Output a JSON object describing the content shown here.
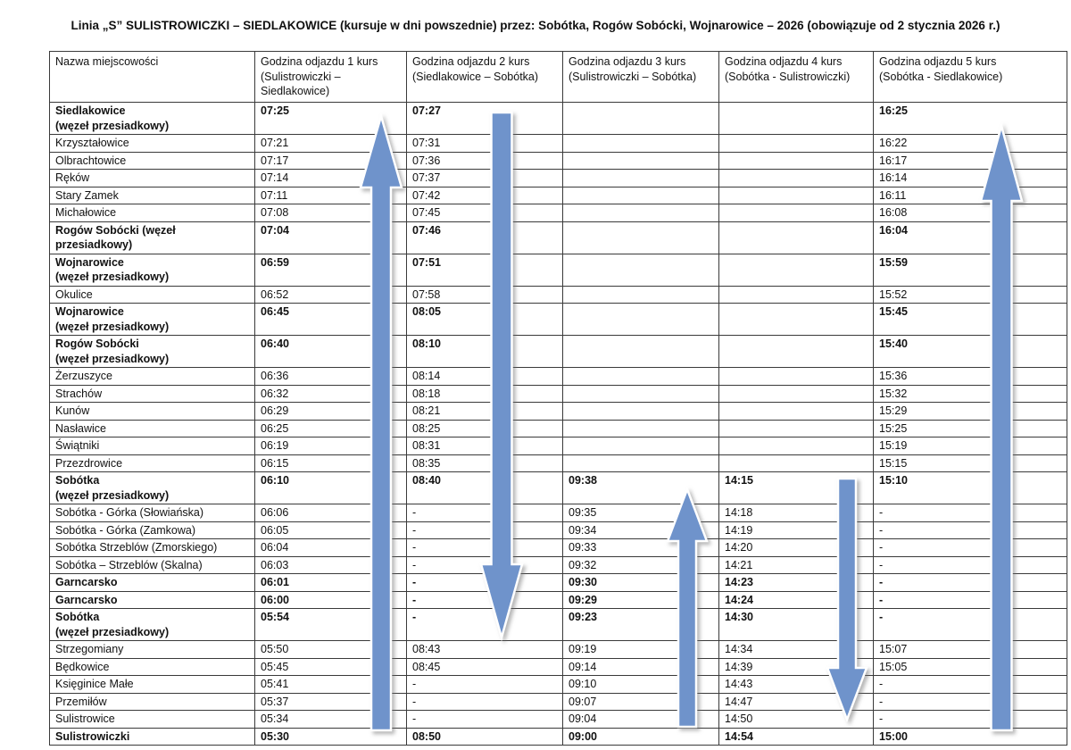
{
  "title": "Linia „S” SULISTROWICZKI – SIEDLAKOWICE (kursuje w dni powszednie) przez: Sobótka, Rogów Sobócki, Wojnarowice – 2026 (obowiązuje od 2 stycznia 2026 r.)",
  "table": {
    "columns": [
      {
        "line1": "Nazwa miejscowości",
        "line2": ""
      },
      {
        "line1": "Godzina odjazdu 1 kurs",
        "line2": "(Sulistrowiczki – Siedlakowice)"
      },
      {
        "line1": "Godzina odjazdu 2 kurs",
        "line2": "(Siedlakowice – Sobótka)"
      },
      {
        "line1": "Godzina odjazdu 3 kurs",
        "line2": "(Sulistrowiczki – Sobótka)"
      },
      {
        "line1": "Godzina odjazdu 4 kurs",
        "line2": "(Sobótka - Sulistrowiczki)"
      },
      {
        "line1": "Godzina odjazdu 5 kurs",
        "line2": "(Sobótka - Siedlakowice)"
      }
    ],
    "rows": [
      {
        "name": "Siedlakowice",
        "sub": "(węzeł przesiadkowy)",
        "bold": true,
        "times": [
          "07:25",
          "07:27",
          "",
          "",
          "16:25"
        ]
      },
      {
        "name": "Krzyształowice",
        "sub": "",
        "bold": false,
        "times": [
          "07:21",
          "07:31",
          "",
          "",
          "16:22"
        ]
      },
      {
        "name": "Olbrachtowice",
        "sub": "",
        "bold": false,
        "times": [
          "07:17",
          "07:36",
          "",
          "",
          "16:17"
        ]
      },
      {
        "name": "Ręków",
        "sub": "",
        "bold": false,
        "times": [
          "07:14",
          "07:37",
          "",
          "",
          "16:14"
        ]
      },
      {
        "name": "Stary Zamek",
        "sub": "",
        "bold": false,
        "times": [
          "07:11",
          "07:42",
          "",
          "",
          "16:11"
        ]
      },
      {
        "name": "Michałowice",
        "sub": "",
        "bold": false,
        "times": [
          "07:08",
          "07:45",
          "",
          "",
          "16:08"
        ]
      },
      {
        "name": "Rogów Sobócki (węzeł",
        "sub": "przesiadkowy)",
        "bold": true,
        "times": [
          "07:04",
          "07:46",
          "",
          "",
          "16:04"
        ]
      },
      {
        "name": "Wojnarowice",
        "sub": "(węzeł przesiadkowy)",
        "bold": true,
        "times": [
          "06:59",
          "07:51",
          "",
          "",
          "15:59"
        ]
      },
      {
        "name": "Okulice",
        "sub": "",
        "bold": false,
        "times": [
          "06:52",
          "07:58",
          "",
          "",
          "15:52"
        ]
      },
      {
        "name": "Wojnarowice",
        "sub": "(węzeł przesiadkowy)",
        "bold": true,
        "times": [
          "06:45",
          "08:05",
          "",
          "",
          "15:45"
        ]
      },
      {
        "name": "Rogów Sobócki",
        "sub": "(węzeł przesiadkowy)",
        "bold": true,
        "times": [
          "06:40",
          "08:10",
          "",
          "",
          "15:40"
        ]
      },
      {
        "name": "Żerzuszyce",
        "sub": "",
        "bold": false,
        "times": [
          "06:36",
          "08:14",
          "",
          "",
          "15:36"
        ]
      },
      {
        "name": "Strachów",
        "sub": "",
        "bold": false,
        "times": [
          "06:32",
          "08:18",
          "",
          "",
          "15:32"
        ]
      },
      {
        "name": "Kunów",
        "sub": "",
        "bold": false,
        "times": [
          "06:29",
          "08:21",
          "",
          "",
          "15:29"
        ]
      },
      {
        "name": "Nasławice",
        "sub": "",
        "bold": false,
        "times": [
          "06:25",
          "08:25",
          "",
          "",
          "15:25"
        ]
      },
      {
        "name": "Świątniki",
        "sub": "",
        "bold": false,
        "times": [
          "06:19",
          "08:31",
          "",
          "",
          "15:19"
        ]
      },
      {
        "name": "Przezdrowice",
        "sub": "",
        "bold": false,
        "times": [
          "06:15",
          "08:35",
          "",
          "",
          "15:15"
        ]
      },
      {
        "name": "Sobótka",
        "sub": "(węzeł przesiadkowy)",
        "bold": true,
        "times": [
          "06:10",
          "08:40",
          "09:38",
          "14:15",
          "15:10"
        ]
      },
      {
        "name": "Sobótka - Górka (Słowiańska)",
        "sub": "",
        "bold": false,
        "times": [
          "06:06",
          "-",
          "09:35",
          "14:18",
          "-"
        ]
      },
      {
        "name": "Sobótka - Górka (Zamkowa)",
        "sub": "",
        "bold": false,
        "times": [
          "06:05",
          "-",
          "09:34",
          "14:19",
          "-"
        ]
      },
      {
        "name": "Sobótka Strzeblów (Zmorskiego)",
        "sub": "",
        "bold": false,
        "times": [
          "06:04",
          "-",
          "09:33",
          "14:20",
          "-"
        ]
      },
      {
        "name": "Sobótka – Strzeblów (Skalna)",
        "sub": "",
        "bold": false,
        "times": [
          "06:03",
          "-",
          "09:32",
          "14:21",
          "-"
        ]
      },
      {
        "name": "Garncarsko",
        "sub": "",
        "bold": true,
        "times": [
          "06:01",
          "-",
          "09:30",
          "14:23",
          "-"
        ]
      },
      {
        "name": "Garncarsko",
        "sub": "",
        "bold": true,
        "times": [
          "06:00",
          "-",
          "09:29",
          "14:24",
          "-"
        ]
      },
      {
        "name": "Sobótka",
        "sub": "(węzeł przesiadkowy)",
        "bold": true,
        "times": [
          "05:54",
          "-",
          "09:23",
          "14:30",
          "-"
        ]
      },
      {
        "name": "Strzegomiany",
        "sub": "",
        "bold": false,
        "times": [
          "05:50",
          "08:43",
          "09:19",
          "14:34",
          "15:07"
        ]
      },
      {
        "name": "Będkowice",
        "sub": "",
        "bold": false,
        "times": [
          "05:45",
          "08:45",
          "09:14",
          "14:39",
          "15:05"
        ]
      },
      {
        "name": "Księginice Małe",
        "sub": "",
        "bold": false,
        "times": [
          "05:41",
          "-",
          "09:10",
          "14:43",
          "-"
        ]
      },
      {
        "name": "Przemiłów",
        "sub": "",
        "bold": false,
        "times": [
          "05:37",
          "-",
          "09:07",
          "14:47",
          "-"
        ]
      },
      {
        "name": "Sulistrowice",
        "sub": "",
        "bold": false,
        "times": [
          "05:34",
          "-",
          "09:04",
          "14:50",
          "-"
        ]
      },
      {
        "name": "Sulistrowiczki",
        "sub": "",
        "bold": true,
        "times": [
          "05:30",
          "08:50",
          "09:00",
          "14:54",
          "15:00"
        ]
      }
    ]
  },
  "arrows": [
    {
      "kurs": 1,
      "direction": "up"
    },
    {
      "kurs": 2,
      "direction": "down"
    },
    {
      "kurs": 3,
      "direction": "up"
    },
    {
      "kurs": 4,
      "direction": "down"
    },
    {
      "kurs": 5,
      "direction": "up"
    }
  ],
  "colors": {
    "arrow_fill": "#6f93cb",
    "arrow_outline": "#ffffff",
    "table_border": "#3a3a3a"
  }
}
